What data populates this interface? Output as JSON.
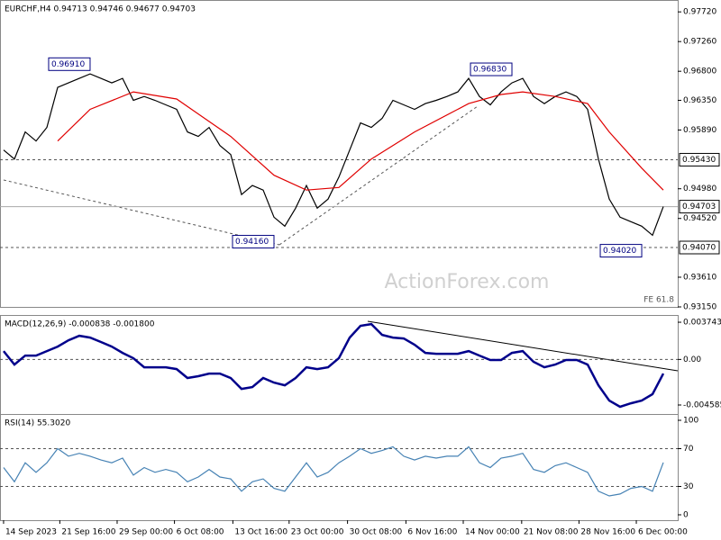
{
  "chart_data": [
    {
      "type": "line",
      "title": "EURCHF,H4 0.94713 0.94746 0.94677 0.94703",
      "xlim": [
        -0.33,
        62.33
      ],
      "ylim": [
        0.9315,
        0.9789
      ],
      "yticks": [
        {
          "value": 0.9772,
          "label": "0.97720"
        },
        {
          "value": 0.9726,
          "label": "0.97260"
        },
        {
          "value": 0.968,
          "label": "0.96800"
        },
        {
          "value": 0.9635,
          "label": "0.96350"
        },
        {
          "value": 0.9589,
          "label": "0.95890"
        },
        {
          "value": 0.9498,
          "label": "0.94980"
        },
        {
          "value": 0.9452,
          "label": "0.94520"
        },
        {
          "value": 0.9361,
          "label": "0.93610"
        },
        {
          "value": 0.9315,
          "label": "0.93150"
        }
      ],
      "levels": [
        {
          "value": 0.9543,
          "label": "0.95430"
        },
        {
          "value": 0.9407,
          "label": "0.94070"
        }
      ],
      "current": {
        "value": 0.94703,
        "label": "0.94703"
      },
      "series": [
        {
          "name": "Close",
          "color": "#000000",
          "values": [
            0.9558,
            0.9544,
            0.9586,
            0.9572,
            0.9593,
            0.9655,
            0.9662,
            0.9669,
            0.9676,
            0.9669,
            0.9662,
            0.9669,
            0.9635,
            0.9641,
            0.9635,
            0.9628,
            0.9621,
            0.9586,
            0.9579,
            0.9593,
            0.9565,
            0.9551,
            0.9489,
            0.9503,
            0.9496,
            0.9454,
            0.944,
            0.9468,
            0.9503,
            0.9468,
            0.9482,
            0.9516,
            0.9558,
            0.96,
            0.9593,
            0.9607,
            0.9635,
            0.9628,
            0.9621,
            0.963,
            0.9635,
            0.9641,
            0.9648,
            0.9669,
            0.9641,
            0.9628,
            0.9648,
            0.9662,
            0.9669,
            0.9641,
            0.963,
            0.9641,
            0.9648,
            0.9641,
            0.9621,
            0.9544,
            0.9482,
            0.9454,
            0.9447,
            0.944,
            0.9426,
            0.94703
          ]
        },
        {
          "name": "MA",
          "color": "#e00000",
          "x": [
            5,
            8,
            12,
            16,
            21,
            25,
            28,
            31,
            34,
            38,
            43,
            46,
            48,
            51,
            54,
            56,
            59,
            61
          ],
          "values": [
            0.9572,
            0.9621,
            0.9648,
            0.9637,
            0.9579,
            0.9519,
            0.9496,
            0.95,
            0.9544,
            0.9586,
            0.963,
            0.9644,
            0.9648,
            0.9641,
            0.963,
            0.9586,
            0.953,
            0.9496
          ]
        }
      ],
      "annotations": [
        {
          "x": 8,
          "value": 0.9691,
          "label": "0.96910"
        },
        {
          "x": 25,
          "value": 0.9416,
          "label": "0.94160"
        },
        {
          "x": 47,
          "value": 0.9683,
          "label": "0.96830"
        },
        {
          "x": 59,
          "value": 0.9402,
          "label": "0.94020"
        }
      ],
      "note": "FE 61.8",
      "watermark": "ActionForex.com"
    },
    {
      "type": "line",
      "title": "MACD(12,26,9) -0.000838 -0.001800",
      "xlim": [
        -0.33,
        62.33
      ],
      "ylim": [
        -0.00549,
        0.00438
      ],
      "yticks": [
        0.003743,
        {
          "value": 0,
          "label": "0.00"
        },
        -0.004585
      ],
      "levels": [
        {
          "value": 0
        }
      ],
      "series": [
        {
          "name": "MACD",
          "color": "#00008b",
          "values": [
            0.00084,
            -0.00052,
            0.00039,
            0.00039,
            0.00084,
            0.00129,
            0.00193,
            0.00238,
            0.0022,
            0.00175,
            0.00129,
            0.00066,
            0.00012,
            -0.00079,
            -0.00079,
            -0.00079,
            -0.00097,
            -0.00187,
            -0.00169,
            -0.00142,
            -0.00142,
            -0.00187,
            -0.00296,
            -0.00278,
            -0.00187,
            -0.00233,
            -0.0026,
            -0.00187,
            -0.00079,
            -0.00097,
            -0.00079,
            0.00012,
            0.0022,
            0.00338,
            0.00356,
            0.00247,
            0.0022,
            0.00211,
            0.00148,
            0.00066,
            0.00057,
            0.00057,
            0.00057,
            0.00084,
            0.00039,
            -6e-05,
            -6e-05,
            0.00066,
            0.00084,
            -0.00024,
            -0.00079,
            -0.00052,
            -6e-05,
            -6e-05,
            -0.00052,
            -0.0026,
            -0.00414,
            -0.00477,
            -0.00441,
            -0.00414,
            -0.0035,
            -0.00142
          ]
        }
      ]
    },
    {
      "type": "line",
      "title": "RSI(14) 55.3020",
      "xlim": [
        -0.33,
        62.33
      ],
      "ylim": [
        -5.7,
        105.7
      ],
      "yticks": [
        100,
        70,
        30,
        0
      ],
      "levels": [
        {
          "value": 70
        },
        {
          "value": 30
        }
      ],
      "xticks": [
        {
          "value": 0,
          "label": "14 Sep 2023"
        },
        {
          "value": 5.2,
          "label": "21 Sep 16:00"
        },
        {
          "value": 10.5,
          "label": "29 Sep 00:00"
        },
        {
          "value": 15.8,
          "label": "6 Oct 08:00"
        },
        {
          "value": 21.2,
          "label": "13 Oct 16:00"
        },
        {
          "value": 26.4,
          "label": "23 Oct 00:00"
        },
        {
          "value": 31.8,
          "label": "30 Oct 08:00"
        },
        {
          "value": 37.2,
          "label": "6 Nov 16:00"
        },
        {
          "value": 42.5,
          "label": "14 Nov 00:00"
        },
        {
          "value": 47.9,
          "label": "21 Nov 08:00"
        },
        {
          "value": 53.2,
          "label": "28 Nov 16:00"
        },
        {
          "value": 58.5,
          "label": "6 Dec 00:00"
        }
      ],
      "series": [
        {
          "name": "RSI",
          "color": "#4682b4",
          "values": [
            50,
            35,
            55,
            45,
            55,
            70,
            62,
            65,
            62,
            58,
            55,
            60,
            42,
            50,
            45,
            48,
            45,
            35,
            40,
            48,
            40,
            38,
            25,
            35,
            38,
            28,
            25,
            40,
            55,
            40,
            45,
            55,
            62,
            70,
            65,
            68,
            72,
            62,
            58,
            62,
            60,
            62,
            62,
            72,
            55,
            50,
            60,
            62,
            65,
            48,
            45,
            52,
            55,
            50,
            45,
            25,
            20,
            22,
            28,
            30,
            25,
            55.302
          ]
        }
      ]
    }
  ]
}
